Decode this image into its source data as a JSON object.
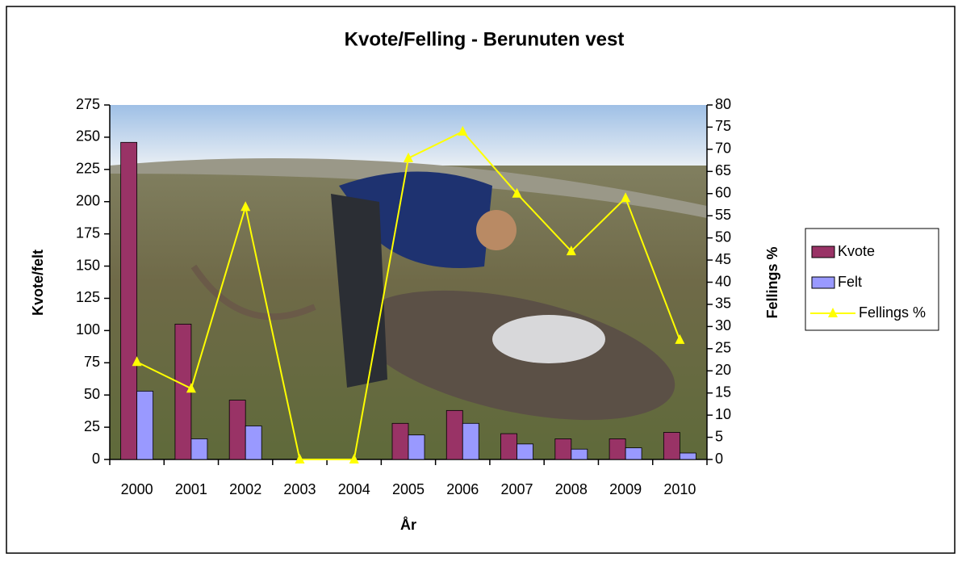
{
  "chart_data": {
    "type": "bar",
    "title": "Kvote/Felling - Berunuten vest",
    "x_label": "År",
    "y_label": "Kvote/felt",
    "y2_label": "Fellings %",
    "categories": [
      "2000",
      "2001",
      "2002",
      "2003",
      "2004",
      "2005",
      "2006",
      "2007",
      "2008",
      "2009",
      "2010"
    ],
    "series": [
      {
        "name": "Kvote",
        "type": "bar",
        "color": "#993366",
        "values": [
          246,
          105,
          46,
          0,
          0,
          28,
          38,
          20,
          16,
          16,
          21
        ]
      },
      {
        "name": "Felt",
        "type": "bar",
        "color": "#9999ff",
        "values": [
          53,
          16,
          26,
          0,
          0,
          19,
          28,
          12,
          8,
          9,
          5
        ]
      },
      {
        "name": "Fellings %",
        "type": "line",
        "axis": "y2",
        "color": "#ffff00",
        "values": [
          22,
          16,
          57,
          0,
          0,
          68,
          74,
          60,
          47,
          59,
          27
        ]
      }
    ],
    "ylim": [
      0,
      275
    ],
    "yticks": [
      0,
      25,
      50,
      75,
      100,
      125,
      150,
      175,
      200,
      225,
      250,
      275
    ],
    "y2lim": [
      0,
      80
    ],
    "y2ticks": [
      0,
      5,
      10,
      15,
      20,
      25,
      30,
      35,
      40,
      45,
      50,
      55,
      60,
      65,
      70,
      75,
      80
    ],
    "legend": "right"
  }
}
